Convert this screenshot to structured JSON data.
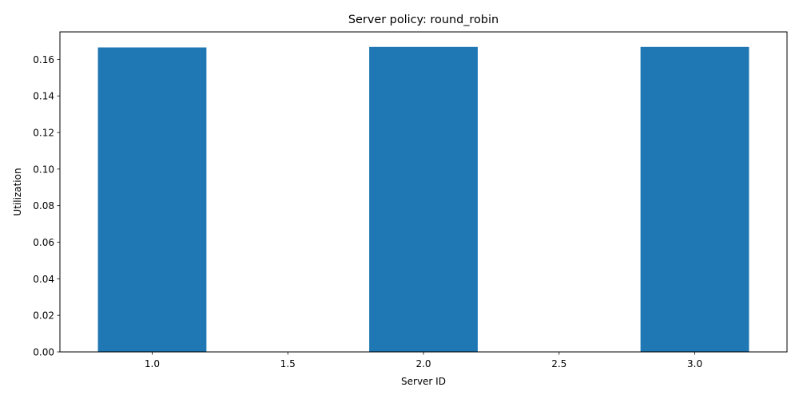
{
  "chart_data": {
    "type": "bar",
    "title": "Server policy: round_robin",
    "xlabel": "Server ID",
    "ylabel": "Utilization",
    "categories": [
      1,
      2,
      3
    ],
    "values": [
      0.1665,
      0.1668,
      0.1668
    ],
    "bar_width": 0.4,
    "xlim": [
      0.66,
      3.34
    ],
    "ylim": [
      0,
      0.175
    ],
    "xticks": [
      1.0,
      1.5,
      2.0,
      2.5,
      3.0
    ],
    "xtick_labels": [
      "1.0",
      "1.5",
      "2.0",
      "2.5",
      "3.0"
    ],
    "yticks": [
      0,
      0.02,
      0.04,
      0.06,
      0.08,
      0.1,
      0.12,
      0.14,
      0.16
    ],
    "ytick_labels": [
      "0.00",
      "0.02",
      "0.04",
      "0.06",
      "0.08",
      "0.10",
      "0.12",
      "0.14",
      "0.16"
    ],
    "grid": false,
    "bar_color": "#1f77b4"
  }
}
